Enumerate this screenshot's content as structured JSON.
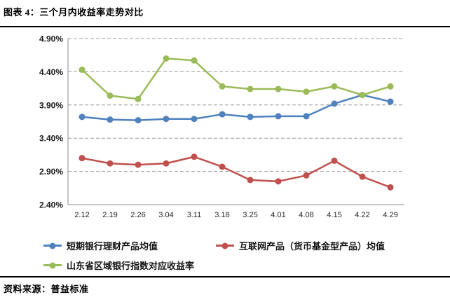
{
  "figure": {
    "title": "图表 4：三个月内收益率走势对比",
    "source_label": "资料来源：普益标准"
  },
  "chart_data": {
    "type": "line",
    "title": "三个月内收益率走势对比",
    "categories": [
      "2.12",
      "2.19",
      "2.26",
      "3.04",
      "3.11",
      "3.18",
      "3.25",
      "4.01",
      "4.08",
      "4.15",
      "4.22",
      "4.29"
    ],
    "series": [
      {
        "name": "短期银行理财产品均值",
        "color": "#4F81BD",
        "values": [
          3.72,
          3.68,
          3.67,
          3.69,
          3.69,
          3.76,
          3.72,
          3.73,
          3.73,
          3.92,
          4.05,
          3.95
        ]
      },
      {
        "name": "互联网产品（货币基金型产品）均值",
        "color": "#C0504D",
        "values": [
          3.1,
          3.02,
          3.0,
          3.02,
          3.12,
          2.97,
          2.77,
          2.75,
          2.84,
          3.06,
          2.82,
          2.66
        ]
      },
      {
        "name": "山东省区域银行指数对应收益率",
        "color": "#9BBB59",
        "values": [
          4.43,
          4.04,
          3.99,
          4.6,
          4.57,
          4.18,
          4.14,
          4.14,
          4.1,
          4.18,
          4.05,
          4.18
        ]
      }
    ],
    "xlabel": "",
    "ylabel": "",
    "ylim": [
      2.4,
      4.9
    ],
    "ytick_step": 0.5,
    "ytick_labels": [
      "2.40%",
      "2.90%",
      "3.40%",
      "3.90%",
      "4.40%",
      "4.90%"
    ],
    "grid": "horizontal-dashed",
    "legend_position": "bottom-left"
  },
  "style": {
    "grid_color": "#999999",
    "axis_color": "#8c8c8c",
    "marker_radius": 4.5
  }
}
